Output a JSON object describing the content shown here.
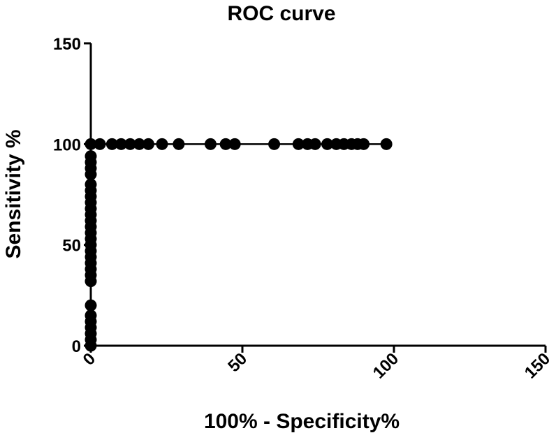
{
  "chart_data": {
    "type": "line",
    "title": "ROC curve",
    "xlabel": "100% - Specificity%",
    "ylabel": "Sensitivity %",
    "xlim": [
      0,
      150
    ],
    "ylim": [
      0,
      150
    ],
    "xticks": [
      0,
      50,
      100,
      150
    ],
    "yticks": [
      0,
      50,
      100,
      150
    ],
    "grid": false,
    "legend": "none",
    "series": [
      {
        "color": "#000000",
        "marker": "filled-circle",
        "points": [
          [
            0,
            0
          ],
          [
            0,
            3
          ],
          [
            0,
            6
          ],
          [
            0,
            9
          ],
          [
            0,
            12
          ],
          [
            0,
            15
          ],
          [
            0,
            20
          ],
          [
            0,
            32
          ],
          [
            0,
            35
          ],
          [
            0,
            38
          ],
          [
            0,
            41
          ],
          [
            0,
            44
          ],
          [
            0,
            47
          ],
          [
            0,
            50
          ],
          [
            0,
            53
          ],
          [
            0,
            56
          ],
          [
            0,
            59
          ],
          [
            0,
            62
          ],
          [
            0,
            65
          ],
          [
            0,
            68
          ],
          [
            0,
            71
          ],
          [
            0,
            74
          ],
          [
            0,
            77
          ],
          [
            0,
            80
          ],
          [
            0,
            85
          ],
          [
            0,
            88
          ],
          [
            0,
            91
          ],
          [
            0,
            94
          ],
          [
            0,
            100
          ],
          [
            3,
            100
          ],
          [
            7,
            100
          ],
          [
            10,
            100
          ],
          [
            13,
            100
          ],
          [
            16,
            100
          ],
          [
            19,
            100
          ],
          [
            23.5,
            100
          ],
          [
            29,
            100
          ],
          [
            39.5,
            100
          ],
          [
            44.5,
            100
          ],
          [
            47.5,
            100
          ],
          [
            60.5,
            100
          ],
          [
            68.5,
            100
          ],
          [
            71.5,
            100
          ],
          [
            74,
            100
          ],
          [
            78,
            100
          ],
          [
            81,
            100
          ],
          [
            83.5,
            100
          ],
          [
            86,
            100
          ],
          [
            88,
            100
          ],
          [
            90,
            100
          ],
          [
            97.5,
            100
          ]
        ]
      }
    ]
  }
}
